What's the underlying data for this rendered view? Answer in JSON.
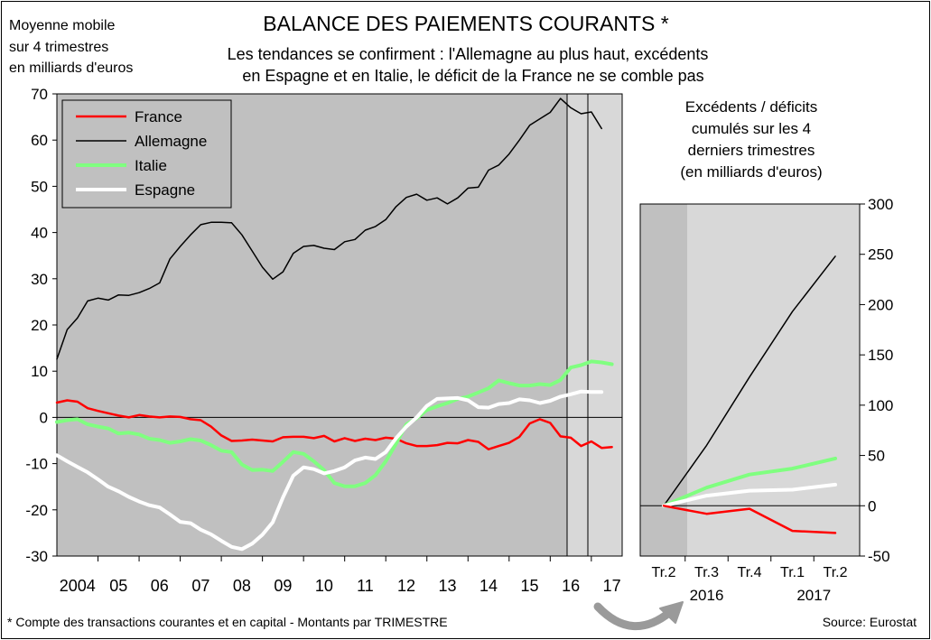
{
  "header": {
    "unit_note": [
      "Moyenne mobile",
      "sur 4 trimestres",
      "en milliards d'euros"
    ],
    "title": "BALANCE DES PAIEMENTS COURANTS *",
    "subtitle": [
      "Les tendances se confirment : l'Allemagne au plus haut, excédents",
      "en Espagne et en Italie, le déficit de la France ne se comble pas"
    ]
  },
  "footer": {
    "note": "* Compte des transactions courantes et en capital - Montants par TRIMESTRE",
    "source": "Source: Eurostat"
  },
  "colors": {
    "France": "#ff0000",
    "Allemagne": "#000000",
    "Italie": "#80ff80",
    "Espagne": "#ffffff",
    "plot_bg": "#c0c0c0",
    "highlight_bg": "#d8d8d8"
  },
  "chart_data": [
    {
      "type": "line",
      "title": "",
      "xlabel": "",
      "ylabel": "",
      "x_tick_labels": [
        "2004",
        "05",
        "06",
        "07",
        "08",
        "09",
        "10",
        "11",
        "12",
        "13",
        "14",
        "15",
        "16",
        "17"
      ],
      "x_range": [
        2004.0,
        2017.75
      ],
      "ylim": [
        -30,
        70
      ],
      "y_ticks": [
        -30,
        -20,
        -10,
        0,
        10,
        20,
        30,
        40,
        50,
        60,
        70
      ],
      "grid": false,
      "legend": "top-left",
      "series": [
        {
          "name": "France",
          "points": [
            [
              2004.0,
              3.2
            ],
            [
              2004.25,
              3.7
            ],
            [
              2004.5,
              3.4
            ],
            [
              2004.75,
              2.0
            ],
            [
              2005.0,
              1.4
            ],
            [
              2005.25,
              0.9
            ],
            [
              2005.5,
              0.4
            ],
            [
              2005.75,
              0.0
            ],
            [
              2006.0,
              0.5
            ],
            [
              2006.25,
              0.2
            ],
            [
              2006.5,
              0.0
            ],
            [
              2006.75,
              0.2
            ],
            [
              2007.0,
              0.1
            ],
            [
              2007.25,
              -0.4
            ],
            [
              2007.5,
              -0.6
            ],
            [
              2007.75,
              -2.0
            ],
            [
              2008.0,
              -3.9
            ],
            [
              2008.25,
              -5.1
            ],
            [
              2008.5,
              -5.0
            ],
            [
              2008.75,
              -4.8
            ],
            [
              2009.0,
              -5.0
            ],
            [
              2009.25,
              -5.2
            ],
            [
              2009.5,
              -4.3
            ],
            [
              2009.75,
              -4.2
            ],
            [
              2010.0,
              -4.2
            ],
            [
              2010.25,
              -4.5
            ],
            [
              2010.5,
              -4.0
            ],
            [
              2010.75,
              -5.2
            ],
            [
              2011.0,
              -4.5
            ],
            [
              2011.25,
              -5.1
            ],
            [
              2011.5,
              -4.6
            ],
            [
              2011.75,
              -4.9
            ],
            [
              2012.0,
              -4.4
            ],
            [
              2012.25,
              -4.6
            ],
            [
              2012.5,
              -5.6
            ],
            [
              2012.75,
              -6.2
            ],
            [
              2013.0,
              -6.2
            ],
            [
              2013.25,
              -6.0
            ],
            [
              2013.5,
              -5.5
            ],
            [
              2013.75,
              -5.6
            ],
            [
              2014.0,
              -4.9
            ],
            [
              2014.25,
              -5.3
            ],
            [
              2014.5,
              -6.9
            ],
            [
              2014.75,
              -6.2
            ],
            [
              2015.0,
              -5.5
            ],
            [
              2015.25,
              -4.2
            ],
            [
              2015.5,
              -1.3
            ],
            [
              2015.75,
              -0.4
            ],
            [
              2016.0,
              -1.2
            ],
            [
              2016.25,
              -4.1
            ],
            [
              2016.5,
              -4.4
            ],
            [
              2016.75,
              -6.2
            ],
            [
              2017.0,
              -5.2
            ],
            [
              2017.25,
              -6.6
            ],
            [
              2017.5,
              -6.4
            ]
          ]
        },
        {
          "name": "Allemagne",
          "points": [
            [
              2004.0,
              12.6
            ],
            [
              2004.25,
              19.0
            ],
            [
              2004.5,
              21.5
            ],
            [
              2004.75,
              25.2
            ],
            [
              2005.0,
              25.8
            ],
            [
              2005.25,
              25.4
            ],
            [
              2005.5,
              26.5
            ],
            [
              2005.75,
              26.4
            ],
            [
              2006.0,
              27.0
            ],
            [
              2006.25,
              27.9
            ],
            [
              2006.5,
              29.1
            ],
            [
              2006.75,
              34.3
            ],
            [
              2007.0,
              37.0
            ],
            [
              2007.25,
              39.5
            ],
            [
              2007.5,
              41.7
            ],
            [
              2007.75,
              42.2
            ],
            [
              2008.0,
              42.2
            ],
            [
              2008.25,
              42.1
            ],
            [
              2008.5,
              39.5
            ],
            [
              2008.75,
              36.0
            ],
            [
              2009.0,
              32.5
            ],
            [
              2009.25,
              29.9
            ],
            [
              2009.5,
              31.5
            ],
            [
              2009.75,
              35.5
            ],
            [
              2010.0,
              37.0
            ],
            [
              2010.25,
              37.2
            ],
            [
              2010.5,
              36.6
            ],
            [
              2010.75,
              36.3
            ],
            [
              2011.0,
              38.0
            ],
            [
              2011.25,
              38.5
            ],
            [
              2011.5,
              40.5
            ],
            [
              2011.75,
              41.3
            ],
            [
              2012.0,
              42.8
            ],
            [
              2012.25,
              45.6
            ],
            [
              2012.5,
              47.6
            ],
            [
              2012.75,
              48.3
            ],
            [
              2013.0,
              47.0
            ],
            [
              2013.25,
              47.5
            ],
            [
              2013.5,
              46.2
            ],
            [
              2013.75,
              47.5
            ],
            [
              2014.0,
              49.6
            ],
            [
              2014.25,
              49.8
            ],
            [
              2014.5,
              53.5
            ],
            [
              2014.75,
              54.6
            ],
            [
              2015.0,
              57.0
            ],
            [
              2015.25,
              60.0
            ],
            [
              2015.5,
              63.2
            ],
            [
              2015.75,
              64.6
            ],
            [
              2016.0,
              66.0
            ],
            [
              2016.25,
              69.0
            ],
            [
              2016.5,
              67.0
            ],
            [
              2016.75,
              65.7
            ],
            [
              2017.0,
              66.1
            ],
            [
              2017.25,
              62.5
            ]
          ]
        },
        {
          "name": "Italie",
          "points": [
            [
              2004.0,
              -1.0
            ],
            [
              2004.25,
              -0.6
            ],
            [
              2004.5,
              -0.4
            ],
            [
              2004.75,
              -1.5
            ],
            [
              2005.0,
              -2.0
            ],
            [
              2005.25,
              -2.4
            ],
            [
              2005.5,
              -3.5
            ],
            [
              2005.75,
              -3.3
            ],
            [
              2006.0,
              -3.7
            ],
            [
              2006.25,
              -4.6
            ],
            [
              2006.5,
              -4.9
            ],
            [
              2006.75,
              -5.5
            ],
            [
              2007.0,
              -5.2
            ],
            [
              2007.25,
              -4.7
            ],
            [
              2007.5,
              -5.0
            ],
            [
              2007.75,
              -6.0
            ],
            [
              2008.0,
              -7.2
            ],
            [
              2008.25,
              -7.5
            ],
            [
              2008.5,
              -10.2
            ],
            [
              2008.75,
              -11.4
            ],
            [
              2009.0,
              -11.3
            ],
            [
              2009.25,
              -11.6
            ],
            [
              2009.5,
              -9.6
            ],
            [
              2009.75,
              -7.5
            ],
            [
              2010.0,
              -7.9
            ],
            [
              2010.25,
              -9.5
            ],
            [
              2010.5,
              -11.4
            ],
            [
              2010.75,
              -14.2
            ],
            [
              2011.0,
              -14.9
            ],
            [
              2011.25,
              -14.9
            ],
            [
              2011.5,
              -14.2
            ],
            [
              2011.75,
              -12.5
            ],
            [
              2012.0,
              -9.5
            ],
            [
              2012.25,
              -5.7
            ],
            [
              2012.5,
              -1.5
            ],
            [
              2012.75,
              -0.2
            ],
            [
              2013.0,
              1.6
            ],
            [
              2013.25,
              2.4
            ],
            [
              2013.5,
              3.1
            ],
            [
              2013.75,
              4.0
            ],
            [
              2014.0,
              4.5
            ],
            [
              2014.25,
              5.4
            ],
            [
              2014.5,
              6.3
            ],
            [
              2014.75,
              8.0
            ],
            [
              2015.0,
              7.4
            ],
            [
              2015.25,
              6.9
            ],
            [
              2015.5,
              6.9
            ],
            [
              2015.75,
              7.2
            ],
            [
              2016.0,
              7.0
            ],
            [
              2016.25,
              8.1
            ],
            [
              2016.5,
              10.8
            ],
            [
              2016.75,
              11.3
            ],
            [
              2017.0,
              12.1
            ],
            [
              2017.25,
              11.9
            ],
            [
              2017.5,
              11.5
            ]
          ]
        },
        {
          "name": "Espagne",
          "points": [
            [
              2004.0,
              -8.2
            ],
            [
              2004.25,
              -9.5
            ],
            [
              2004.5,
              -10.7
            ],
            [
              2004.75,
              -11.9
            ],
            [
              2005.0,
              -13.4
            ],
            [
              2005.25,
              -15.0
            ],
            [
              2005.5,
              -16.0
            ],
            [
              2005.75,
              -17.2
            ],
            [
              2006.0,
              -18.2
            ],
            [
              2006.25,
              -19.0
            ],
            [
              2006.5,
              -19.5
            ],
            [
              2006.75,
              -21.0
            ],
            [
              2007.0,
              -22.6
            ],
            [
              2007.25,
              -22.9
            ],
            [
              2007.5,
              -24.3
            ],
            [
              2007.75,
              -25.3
            ],
            [
              2008.0,
              -26.7
            ],
            [
              2008.25,
              -28.0
            ],
            [
              2008.5,
              -28.5
            ],
            [
              2008.75,
              -27.3
            ],
            [
              2009.0,
              -25.4
            ],
            [
              2009.25,
              -22.7
            ],
            [
              2009.5,
              -17.3
            ],
            [
              2009.75,
              -12.6
            ],
            [
              2010.0,
              -10.8
            ],
            [
              2010.25,
              -11.2
            ],
            [
              2010.5,
              -12.1
            ],
            [
              2010.75,
              -11.6
            ],
            [
              2011.0,
              -10.8
            ],
            [
              2011.25,
              -9.3
            ],
            [
              2011.5,
              -8.7
            ],
            [
              2011.75,
              -9.0
            ],
            [
              2012.0,
              -7.5
            ],
            [
              2012.25,
              -4.5
            ],
            [
              2012.5,
              -2.0
            ],
            [
              2012.75,
              0.0
            ],
            [
              2013.0,
              2.5
            ],
            [
              2013.25,
              4.0
            ],
            [
              2013.5,
              4.1
            ],
            [
              2013.75,
              4.2
            ],
            [
              2014.0,
              3.7
            ],
            [
              2014.25,
              2.2
            ],
            [
              2014.5,
              2.1
            ],
            [
              2014.75,
              2.9
            ],
            [
              2015.0,
              3.1
            ],
            [
              2015.25,
              3.9
            ],
            [
              2015.5,
              3.7
            ],
            [
              2015.75,
              3.1
            ],
            [
              2016.0,
              3.6
            ],
            [
              2016.25,
              4.5
            ],
            [
              2016.5,
              5.0
            ],
            [
              2016.75,
              5.6
            ],
            [
              2017.0,
              5.5
            ],
            [
              2017.25,
              5.5
            ]
          ]
        }
      ]
    },
    {
      "type": "line",
      "title": "Excédents / déficits cumulés sur les 4 derniers trimestres (en milliards d'euros)",
      "title_lines": [
        "Excédents / déficits",
        "cumulés sur les 4",
        "derniers trimestres",
        "(en milliards d'euros)"
      ],
      "categories": [
        "Tr.2",
        "Tr.3",
        "Tr.4",
        "Tr.1",
        "Tr.2"
      ],
      "year_labels": [
        {
          "at": 1,
          "label": "2016"
        },
        {
          "at": 3.5,
          "label": "2017"
        }
      ],
      "ylim": [
        -50,
        300
      ],
      "y_ticks": [
        -50,
        0,
        50,
        100,
        150,
        200,
        250,
        300
      ],
      "y_axis_side": "right",
      "grid": false,
      "series": [
        {
          "name": "France",
          "values": [
            0,
            -8,
            -3,
            -25,
            -27
          ]
        },
        {
          "name": "Allemagne",
          "values": [
            0,
            60,
            128,
            193,
            248
          ]
        },
        {
          "name": "Italie",
          "values": [
            0,
            18,
            31,
            37,
            47
          ]
        },
        {
          "name": "Espagne",
          "values": [
            0,
            10,
            15,
            16,
            21
          ]
        }
      ]
    }
  ]
}
